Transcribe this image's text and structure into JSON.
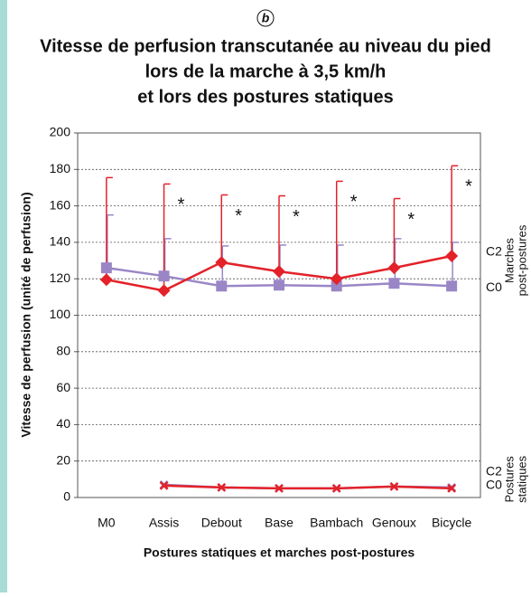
{
  "chart_data": {
    "type": "line",
    "panel_label": "b",
    "title_lines": [
      "Vitesse de perfusion transcutanée au niveau du pied",
      "lors de la marche à 3,5 km/h",
      "et lors des postures statiques"
    ],
    "x_label": "Postures statiques et marches post-postures",
    "y_label": "Vitesse de perfusion (unité de perfusion)",
    "categories": [
      "M0",
      "Assis",
      "Debout",
      "Base",
      "Bambach",
      "Genoux",
      "Bicycle"
    ],
    "ylim": [
      0,
      200
    ],
    "yticks": [
      0,
      20,
      40,
      60,
      80,
      100,
      120,
      140,
      160,
      180,
      200
    ],
    "grid": true,
    "series": [
      {
        "name": "C0",
        "color": "#9a86c6",
        "marker": "square",
        "values": [
          126,
          121.5,
          116,
          116.5,
          116,
          117.5,
          116
        ],
        "errors": [
          29,
          20.5,
          22,
          22,
          22.5,
          24.5,
          24
        ]
      },
      {
        "name": "C2",
        "color": "#e3222a",
        "marker": "diamond",
        "values": [
          119.5,
          113.5,
          129,
          124,
          120,
          126,
          132.5
        ],
        "errors": [
          56,
          58.5,
          37,
          41.5,
          53.5,
          38,
          49.5
        ]
      },
      {
        "name": "C0",
        "color": "#9a86c6",
        "marker": "cross",
        "values": [
          null,
          7,
          5.5,
          5,
          5,
          6,
          5.5
        ]
      },
      {
        "name": "C2",
        "color": "#e3222a",
        "marker": "cross",
        "values": [
          null,
          6.5,
          5.5,
          5,
          5,
          6,
          5
        ]
      }
    ],
    "significance": [
      null,
      "*",
      "*",
      "*",
      "*",
      "*",
      "*"
    ],
    "group_labels": [
      [
        "Marches",
        "post-postures"
      ],
      [
        "Postures",
        "statiques"
      ]
    ]
  }
}
